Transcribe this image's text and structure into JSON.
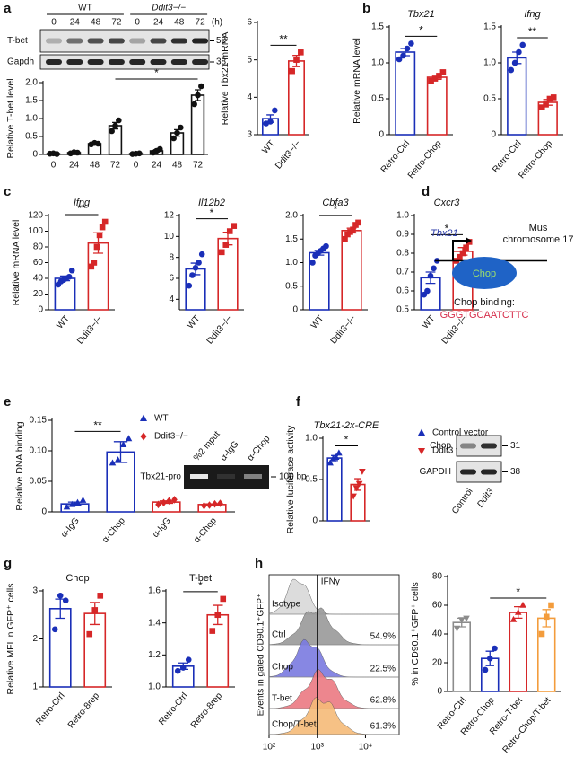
{
  "panels": [
    "a",
    "b",
    "c",
    "d",
    "e",
    "f",
    "g",
    "h"
  ],
  "chart_data": [
    {
      "type": "blot",
      "groups": [
        "WT",
        "Ddit3−/−"
      ],
      "lanes": [
        "0",
        "24",
        "48",
        "72",
        "0",
        "24",
        "48",
        "72"
      ],
      "unit": "(h)",
      "rows": [
        "T-bet",
        "Gapdh"
      ],
      "markers": [
        "52",
        "38"
      ]
    },
    {
      "type": "bar",
      "ylabel": "Relative T-bet level",
      "categories": [
        "0",
        "24",
        "48",
        "72",
        "0",
        "24",
        "48",
        "72"
      ],
      "values": [
        0.02,
        0.05,
        0.3,
        0.8,
        0.02,
        0.1,
        0.6,
        1.65
      ],
      "errors": [
        0.01,
        0.01,
        0.02,
        0.09,
        0.01,
        0.03,
        0.09,
        0.15
      ],
      "points": [
        [
          0.02,
          0.03,
          0.01
        ],
        [
          0.03,
          0.06,
          0.05
        ],
        [
          0.28,
          0.32,
          0.3
        ],
        [
          0.65,
          0.8,
          0.95
        ],
        [
          0.01,
          0.02,
          0.03
        ],
        [
          0.05,
          0.1,
          0.15
        ],
        [
          0.45,
          0.6,
          0.75
        ],
        [
          1.4,
          1.65,
          1.9
        ]
      ],
      "colors": [
        "#111111",
        "#111111",
        "#111111",
        "#111111",
        "#111111",
        "#111111",
        "#111111",
        "#111111"
      ],
      "markers": [
        "circle",
        "circle",
        "circle",
        "circle",
        "circle",
        "circle",
        "circle",
        "circle"
      ],
      "ylim": [
        0,
        2
      ],
      "yticks": [
        0,
        0.5,
        {
          "value": 1,
          "label": "1.0"
        },
        1.5,
        {
          "value": 2,
          "label": "2.0"
        }
      ],
      "significance": [
        {
          "from": 3,
          "to": 7,
          "label": "*"
        }
      ]
    },
    {
      "type": "bar",
      "ylabel": "Relative Tbx21 mRNA",
      "categories": [
        "WT",
        "Ddit3−/−"
      ],
      "values": [
        3.43,
        4.97
      ],
      "errors": [
        0.1,
        0.15
      ],
      "points": [
        [
          3.3,
          3.35,
          3.65
        ],
        [
          4.7,
          5.0,
          5.2
        ]
      ],
      "colors": [
        "#1a2fb8",
        "#d62728"
      ],
      "markers": [
        "circle",
        "square"
      ],
      "ylim": [
        3,
        6
      ],
      "yticks": [
        3,
        4,
        5,
        6
      ],
      "significance": [
        {
          "from": 0,
          "to": 1,
          "label": "**"
        }
      ]
    },
    {
      "type": "bar",
      "title": "Tbx21",
      "italic": true,
      "ylabel": "Relative mRNA level",
      "categories": [
        "Retro-Ctrl",
        "Retro-Chop"
      ],
      "values": [
        1.15,
        0.8
      ],
      "errors": [
        0.05,
        0.03
      ],
      "points": [
        [
          1.05,
          1.1,
          1.2,
          1.27
        ],
        [
          0.75,
          0.78,
          0.82,
          0.87
        ]
      ],
      "colors": [
        "#1a2fb8",
        "#d62728"
      ],
      "markers": [
        "circle",
        "square"
      ],
      "ylim": [
        0,
        1.5
      ],
      "yticks": [
        0,
        0.5,
        {
          "value": 1,
          "label": "1.0"
        },
        1.5
      ],
      "significance": [
        {
          "from": 0,
          "to": 1,
          "label": "*"
        }
      ]
    },
    {
      "type": "bar",
      "title": "Ifng",
      "italic": true,
      "categories": [
        "Retro-Ctrl",
        "Retro-Chop"
      ],
      "values": [
        1.07,
        0.45
      ],
      "errors": [
        0.08,
        0.04
      ],
      "points": [
        [
          0.9,
          1.0,
          1.15,
          1.25
        ],
        [
          0.38,
          0.42,
          0.5,
          0.52
        ]
      ],
      "colors": [
        "#1a2fb8",
        "#d62728"
      ],
      "markers": [
        "circle",
        "square"
      ],
      "ylim": [
        0,
        1.5
      ],
      "yticks": [
        0,
        0.5,
        {
          "value": 1,
          "label": "1.0"
        },
        1.5
      ],
      "significance": [
        {
          "from": 0,
          "to": 1,
          "label": "**"
        }
      ]
    },
    {
      "type": "bar",
      "title": "Ifng",
      "italic": true,
      "ylabel": "Relative mRNA level",
      "categories": [
        "WT",
        "Ddit3−/−"
      ],
      "values": [
        40,
        85
      ],
      "errors": [
        3,
        13
      ],
      "points": [
        [
          32,
          36,
          38,
          40,
          42,
          50
        ],
        [
          55,
          60,
          80,
          95,
          105,
          112
        ]
      ],
      "colors": [
        "#1a2fb8",
        "#d62728"
      ],
      "markers": [
        "circle",
        "square"
      ],
      "ylim": [
        0,
        120
      ],
      "yticks": [
        0,
        20,
        40,
        60,
        80,
        100,
        120
      ],
      "significance": [
        {
          "from": 0,
          "to": 1,
          "label": "**"
        }
      ]
    },
    {
      "type": "bar",
      "title": "Il12b2",
      "italic": true,
      "categories": [
        "WT",
        "Ddit3−/−"
      ],
      "values": [
        6.9,
        9.8
      ],
      "errors": [
        0.55,
        0.6
      ],
      "points": [
        [
          5.3,
          6.3,
          7,
          7.5,
          8.3
        ],
        [
          8.5,
          9.2,
          10.5,
          11
        ]
      ],
      "colors": [
        "#1a2fb8",
        "#d62728"
      ],
      "markers": [
        "circle",
        "square"
      ],
      "ylim": [
        3,
        12
      ],
      "yticks": [
        4,
        6,
        8,
        10,
        12
      ],
      "significance": [
        {
          "from": 0,
          "to": 1,
          "label": "*"
        }
      ]
    },
    {
      "type": "bar",
      "title": "Cbfa3",
      "italic": true,
      "categories": [
        "WT",
        "Ddit3−/−"
      ],
      "values": [
        1.21,
        1.68
      ],
      "errors": [
        0.05,
        0.05
      ],
      "points": [
        [
          1.0,
          1.15,
          1.2,
          1.25,
          1.3,
          1.35
        ],
        [
          1.5,
          1.6,
          1.65,
          1.7,
          1.8,
          1.85
        ]
      ],
      "colors": [
        "#1a2fb8",
        "#d62728"
      ],
      "markers": [
        "circle",
        "square"
      ],
      "ylim": [
        0,
        2
      ],
      "yticks": [
        0,
        0.5,
        {
          "value": 1,
          "label": "1.0"
        },
        1.5,
        {
          "value": 2,
          "label": "2.0"
        }
      ],
      "significance": [
        {
          "from": 0,
          "to": 1,
          "label": "*"
        }
      ]
    },
    {
      "type": "bar",
      "title": "Cxcr3",
      "italic": true,
      "categories": [
        "WT",
        "Ddit3−/−"
      ],
      "values": [
        0.67,
        0.81
      ],
      "errors": [
        0.03,
        0.02
      ],
      "points": [
        [
          0.58,
          0.6,
          0.68,
          0.72,
          0.76
        ],
        [
          0.76,
          0.78,
          0.8,
          0.83,
          0.86
        ]
      ],
      "colors": [
        "#1a2fb8",
        "#d62728"
      ],
      "markers": [
        "circle",
        "square"
      ],
      "ylim": [
        0.5,
        1
      ],
      "yticks": [
        0.5,
        0.6,
        0.7,
        0.8,
        0.9,
        {
          "value": 1,
          "label": "1.0"
        }
      ],
      "significance": [
        {
          "from": 0,
          "to": 1,
          "label": "*"
        }
      ]
    },
    {
      "type": "diagram",
      "gene": "Tbx21",
      "chromosome": [
        "Mus",
        "chromosome 17"
      ],
      "protein": "Chop",
      "binding_title": "Chop binding:",
      "sequence": "GGGTGCAATCTTC"
    },
    {
      "type": "bar",
      "ylabel": "Relative DNA binding",
      "categories": [
        "α-IgG",
        "α-Chop",
        "α-IgG",
        "α-Chop"
      ],
      "values": [
        0.013,
        0.098,
        0.016,
        0.012
      ],
      "errors": [
        0.003,
        0.017,
        0.002,
        0.001
      ],
      "points": [
        [
          0.008,
          0.012,
          0.015,
          0.019
        ],
        [
          0.08,
          0.085,
          0.11,
          0.12
        ],
        [
          0.012,
          0.015,
          0.018,
          0.02
        ],
        [
          0.01,
          0.011,
          0.013,
          0.014
        ]
      ],
      "colors": [
        "#1a2fb8",
        "#1a2fb8",
        "#d62728",
        "#d62728"
      ],
      "markers": [
        "triangle",
        "triangle",
        "diamond",
        "diamond"
      ],
      "ylim": [
        0,
        0.15
      ],
      "yticks": [
        0,
        0.05,
        {
          "value": 0.1,
          "label": "0.10"
        },
        0.15
      ],
      "significance": [
        {
          "from": 0,
          "to": 1,
          "label": "**"
        }
      ],
      "legend": [
        {
          "name": "WT",
          "color": "#1a2fb8",
          "marker": "triangle"
        },
        {
          "name": "Ddit3−/−",
          "color": "#d62728",
          "marker": "diamond"
        }
      ]
    },
    {
      "type": "gel",
      "lanes": [
        "%2 Input",
        "α-IgG",
        "α-Chop"
      ],
      "row": "Tbx21-pro",
      "marker": "100 bp"
    },
    {
      "type": "bar",
      "title": "Tbx21-2x-CRE",
      "italic": true,
      "ylabel": "Relative luciferase activity",
      "values": [
        0.76,
        0.44
      ],
      "errors": [
        0.03,
        0.07
      ],
      "points": [
        [
          0.7,
          0.75,
          0.77,
          0.82
        ],
        [
          0.3,
          0.4,
          0.45,
          0.6
        ]
      ],
      "colors": [
        "#1a2fb8",
        "#d62728"
      ],
      "markers": [
        "triangle",
        "triangle-down"
      ],
      "ylim": [
        0,
        1
      ],
      "yticks": [
        0,
        0.5,
        {
          "value": 1,
          "label": "1.0"
        }
      ],
      "significance": [
        {
          "from": 0,
          "to": 1,
          "label": "*"
        }
      ],
      "legend": [
        {
          "name": "Control vector",
          "color": "#1a2fb8",
          "marker": "triangle"
        },
        {
          "name": "Ddit3 vector",
          "color": "#d62728",
          "marker": "triangle-down"
        }
      ]
    },
    {
      "type": "blot",
      "lanes": [
        "Control",
        "Ddit3"
      ],
      "rows": [
        "Chop",
        "GAPDH"
      ],
      "markers": [
        "31",
        "38"
      ]
    },
    {
      "type": "bar",
      "title": "Chop",
      "ylabel": "Relative MFI in GFP⁺ cells",
      "categories": [
        "Retro-Ctrl",
        "Retro-8rep"
      ],
      "values": [
        2.63,
        2.53
      ],
      "errors": [
        0.2,
        0.23
      ],
      "points": [
        [
          2.2,
          2.9,
          2.8
        ],
        [
          2.1,
          2.6,
          2.9
        ]
      ],
      "colors": [
        "#1a2fb8",
        "#d62728"
      ],
      "markers": [
        "circle",
        "square"
      ],
      "ylim": [
        1,
        3
      ],
      "yticks": [
        1,
        2,
        3
      ]
    },
    {
      "type": "bar",
      "title": "T-bet",
      "categories": [
        "Retro-Ctrl",
        "Retro-8rep"
      ],
      "values": [
        1.13,
        1.45
      ],
      "errors": [
        0.02,
        0.06
      ],
      "points": [
        [
          1.1,
          1.12,
          1.17
        ],
        [
          1.35,
          1.45,
          1.55
        ]
      ],
      "colors": [
        "#1a2fb8",
        "#d62728"
      ],
      "markers": [
        "circle",
        "square"
      ],
      "ylim": [
        1,
        1.6
      ],
      "yticks": [
        {
          "value": 1,
          "label": "1.0"
        },
        1.2,
        1.4,
        1.6
      ],
      "significance": [
        {
          "from": 0,
          "to": 1,
          "label": "*"
        }
      ]
    },
    {
      "type": "flow",
      "ylabel": "Events in gated CD90.1⁺GFP⁺",
      "gate": 1000,
      "gate_label": "IFNγ",
      "xlog": true,
      "xlim": [
        100,
        50000
      ],
      "xticks": [
        {
          "value": 100,
          "label": "10²"
        },
        {
          "value": 1000,
          "label": "10³"
        },
        {
          "value": 10000,
          "label": "10⁴"
        }
      ],
      "tracks": [
        {
          "name": "Isotype",
          "color": "#d9d9d9"
        },
        {
          "name": "Ctrl",
          "color": "#9a9a9a"
        },
        {
          "name": "Chop",
          "color": "#7b7be0"
        },
        {
          "name": "T-bet",
          "color": "#ec7a82"
        },
        {
          "name": "Chop/T-bet",
          "color": "#f6bb78"
        }
      ],
      "values": [
        54.9,
        22.5,
        62.8,
        61.3
      ],
      "value_labels": [
        "54.9%",
        "22.5%",
        "62.8%",
        "61.3%"
      ]
    },
    {
      "type": "bar",
      "ylabel": "% in CD90.1⁺GFP⁺ cells",
      "categories": [
        "Retro-Ctrl",
        "Retro-Chop",
        "Retro-T-bet",
        "Retro-Chop/T-bet"
      ],
      "values": [
        48,
        23,
        55,
        51
      ],
      "errors": [
        3,
        5,
        4,
        6
      ],
      "points": [
        [
          44,
          50,
          51
        ],
        [
          15,
          23,
          30
        ],
        [
          50,
          55,
          60
        ],
        [
          40,
          52,
          60
        ]
      ],
      "colors": [
        "#8c8c8c",
        "#1a2fb8",
        "#d62728",
        "#f39c3c"
      ],
      "markers": [
        "triangle-down",
        "circle",
        "triangle",
        "square"
      ],
      "ylim": [
        0,
        80
      ],
      "yticks": [
        0,
        20,
        40,
        60,
        80
      ],
      "significance": [
        {
          "from": 1,
          "to": 3,
          "label": "*"
        }
      ]
    }
  ]
}
